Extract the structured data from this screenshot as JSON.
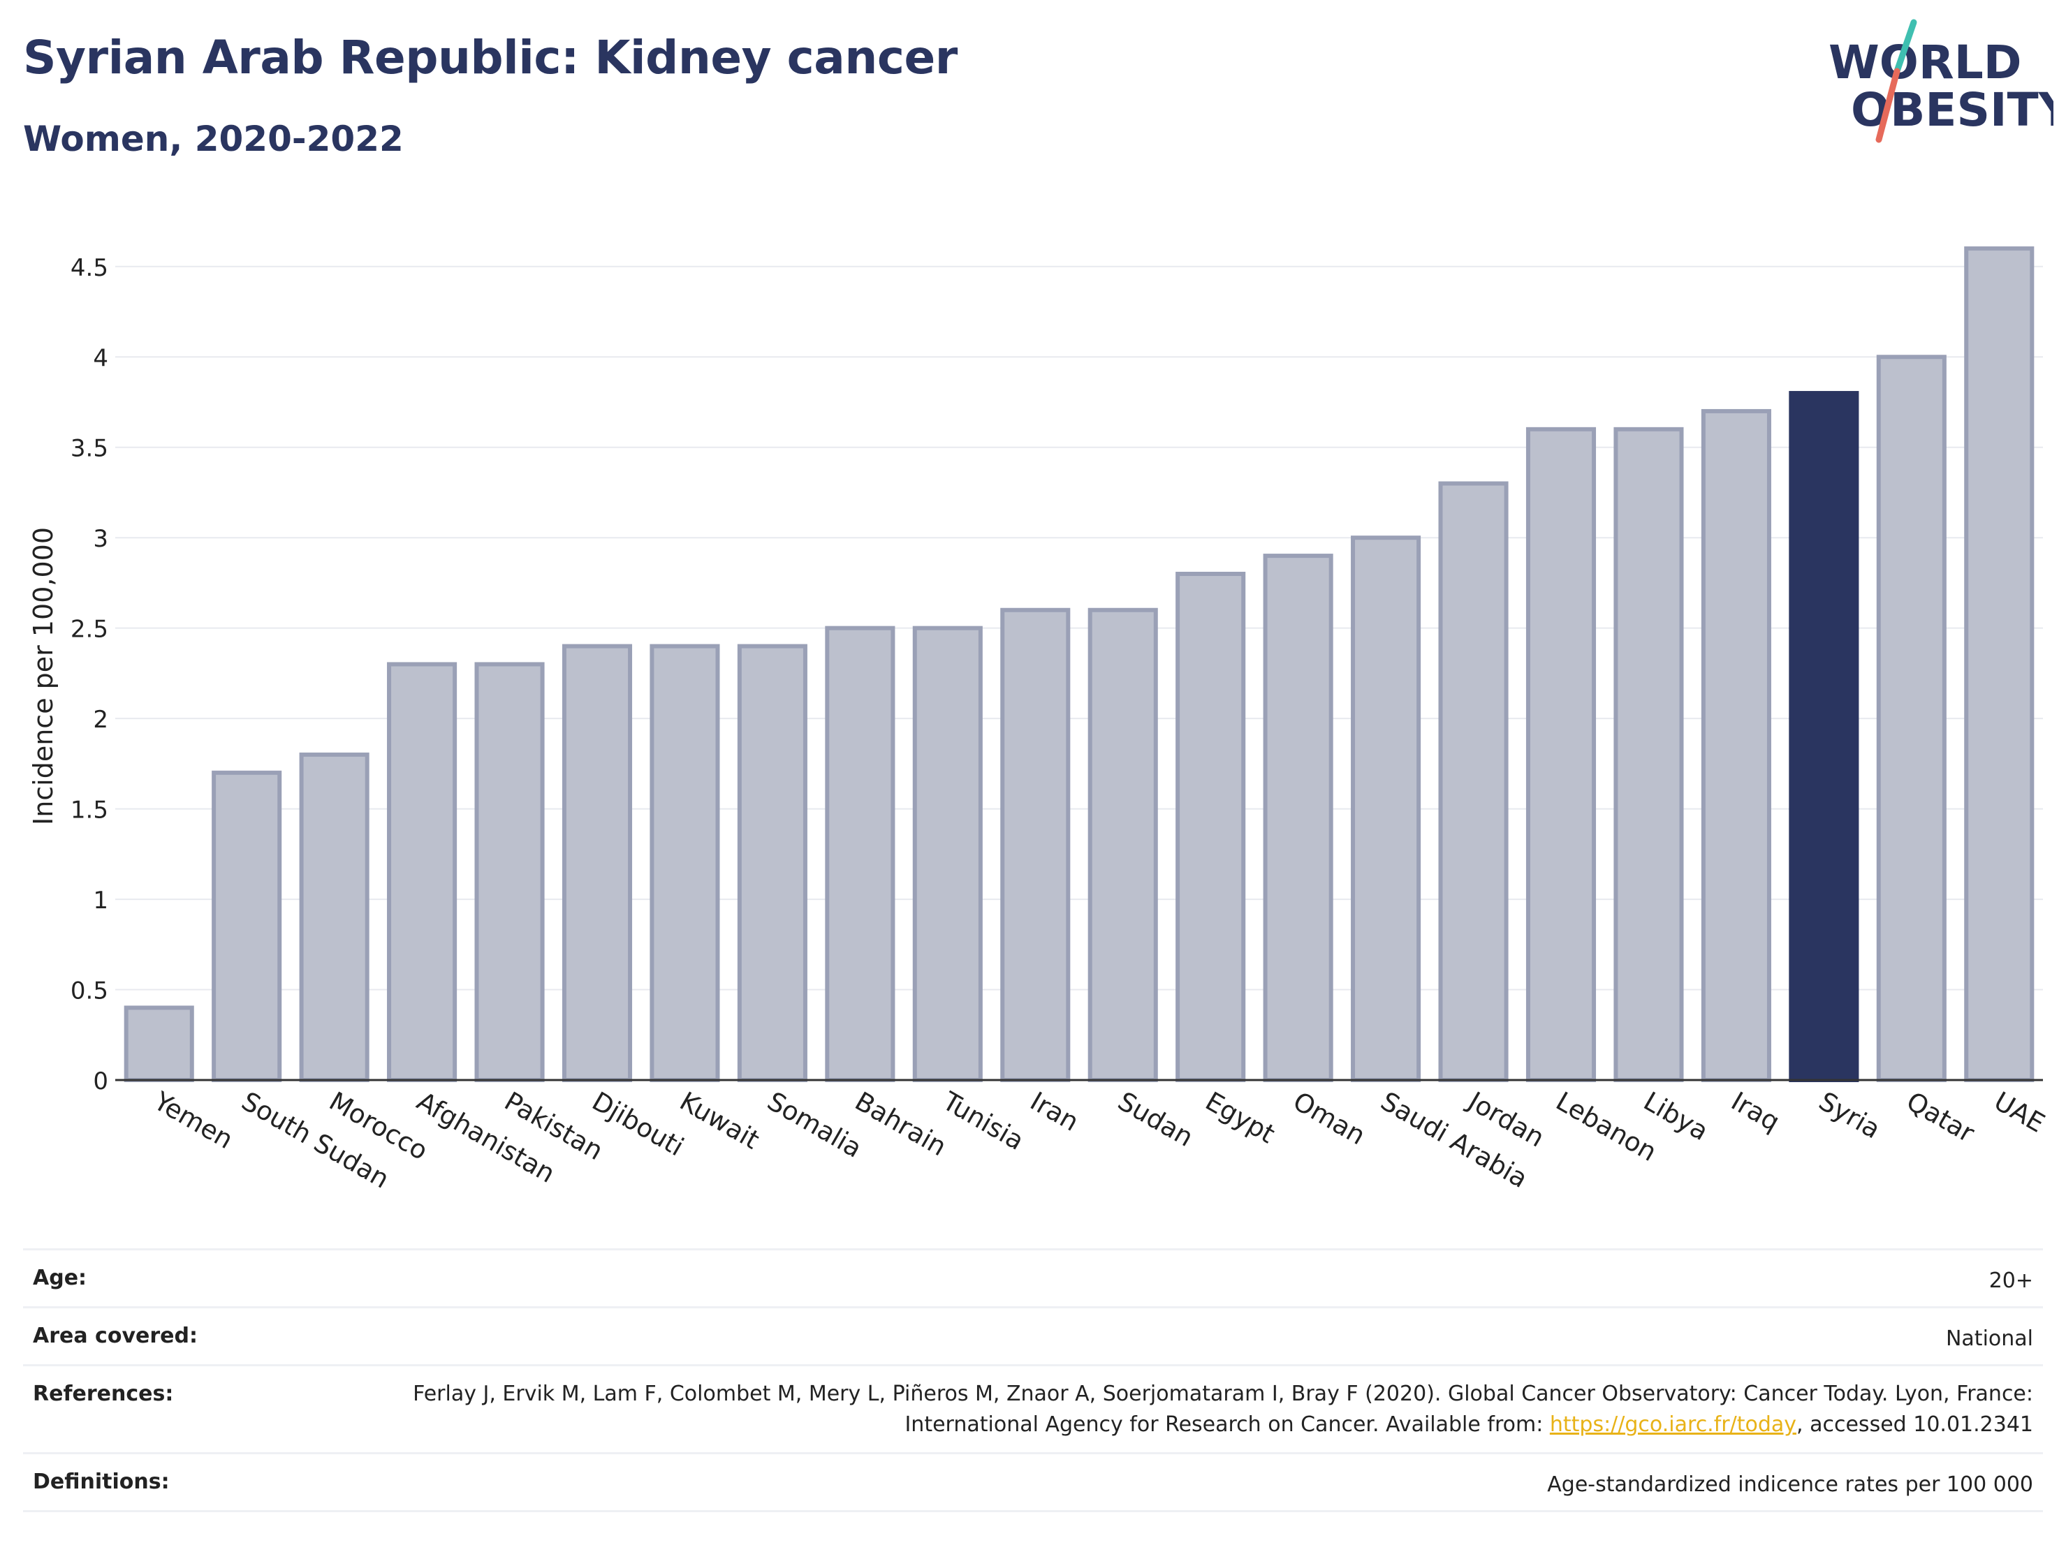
{
  "header": {
    "title": "Syrian Arab Republic: Kidney cancer",
    "subtitle": "Women, 2020-2022"
  },
  "logo": {
    "line1": "WORLD",
    "line2": "OBESITY",
    "accent_colors": [
      "#3fbfb0",
      "#e66a5a"
    ]
  },
  "colors": {
    "bar": "#bcc0cd",
    "bar_border": "#9aa0b6",
    "highlight": "#2a3560",
    "grid": "#e8eaef",
    "axis": "#333333"
  },
  "chart_data": {
    "type": "bar",
    "ylabel": "Incidence per 100,000",
    "ylim": [
      0,
      4.7
    ],
    "yticks": [
      0,
      0.5,
      1,
      1.5,
      2,
      2.5,
      3,
      3.5,
      4,
      4.5
    ],
    "ytick_labels": [
      "0",
      "0.5",
      "1",
      "1.5",
      "2",
      "2.5",
      "3",
      "3.5",
      "4",
      "4.5"
    ],
    "grid": true,
    "categories": [
      "Yemen",
      "South Sudan",
      "Morocco",
      "Afghanistan",
      "Pakistan",
      "Djibouti",
      "Kuwait",
      "Somalia",
      "Bahrain",
      "Tunisia",
      "Iran",
      "Sudan",
      "Egypt",
      "Oman",
      "Saudi Arabia",
      "Jordan",
      "Lebanon",
      "Libya",
      "Iraq",
      "Syria",
      "Qatar",
      "UAE"
    ],
    "values": [
      0.4,
      1.7,
      1.8,
      2.3,
      2.3,
      2.4,
      2.4,
      2.4,
      2.5,
      2.5,
      2.6,
      2.6,
      2.8,
      2.9,
      3.0,
      3.3,
      3.6,
      3.6,
      3.7,
      3.8,
      4.0,
      4.6
    ],
    "highlight": "Syria"
  },
  "meta": {
    "age": {
      "label": "Age:",
      "value": "20+"
    },
    "area": {
      "label": "Area covered:",
      "value": "National"
    },
    "references": {
      "label": "References:",
      "text_before": "Ferlay J, Ervik M, Lam F, Colombet M, Mery L, Piñeros M, Znaor A, Soerjomataram I, Bray F (2020). Global Cancer Observatory: Cancer Today. Lyon, France: International Agency for Research on Cancer. Available from: ",
      "link": "https://gco.iarc.fr/today",
      "text_after": ", accessed 10.01.2341"
    },
    "definitions": {
      "label": "Definitions:",
      "value": "Age-standardized indicence rates per 100 000"
    }
  }
}
